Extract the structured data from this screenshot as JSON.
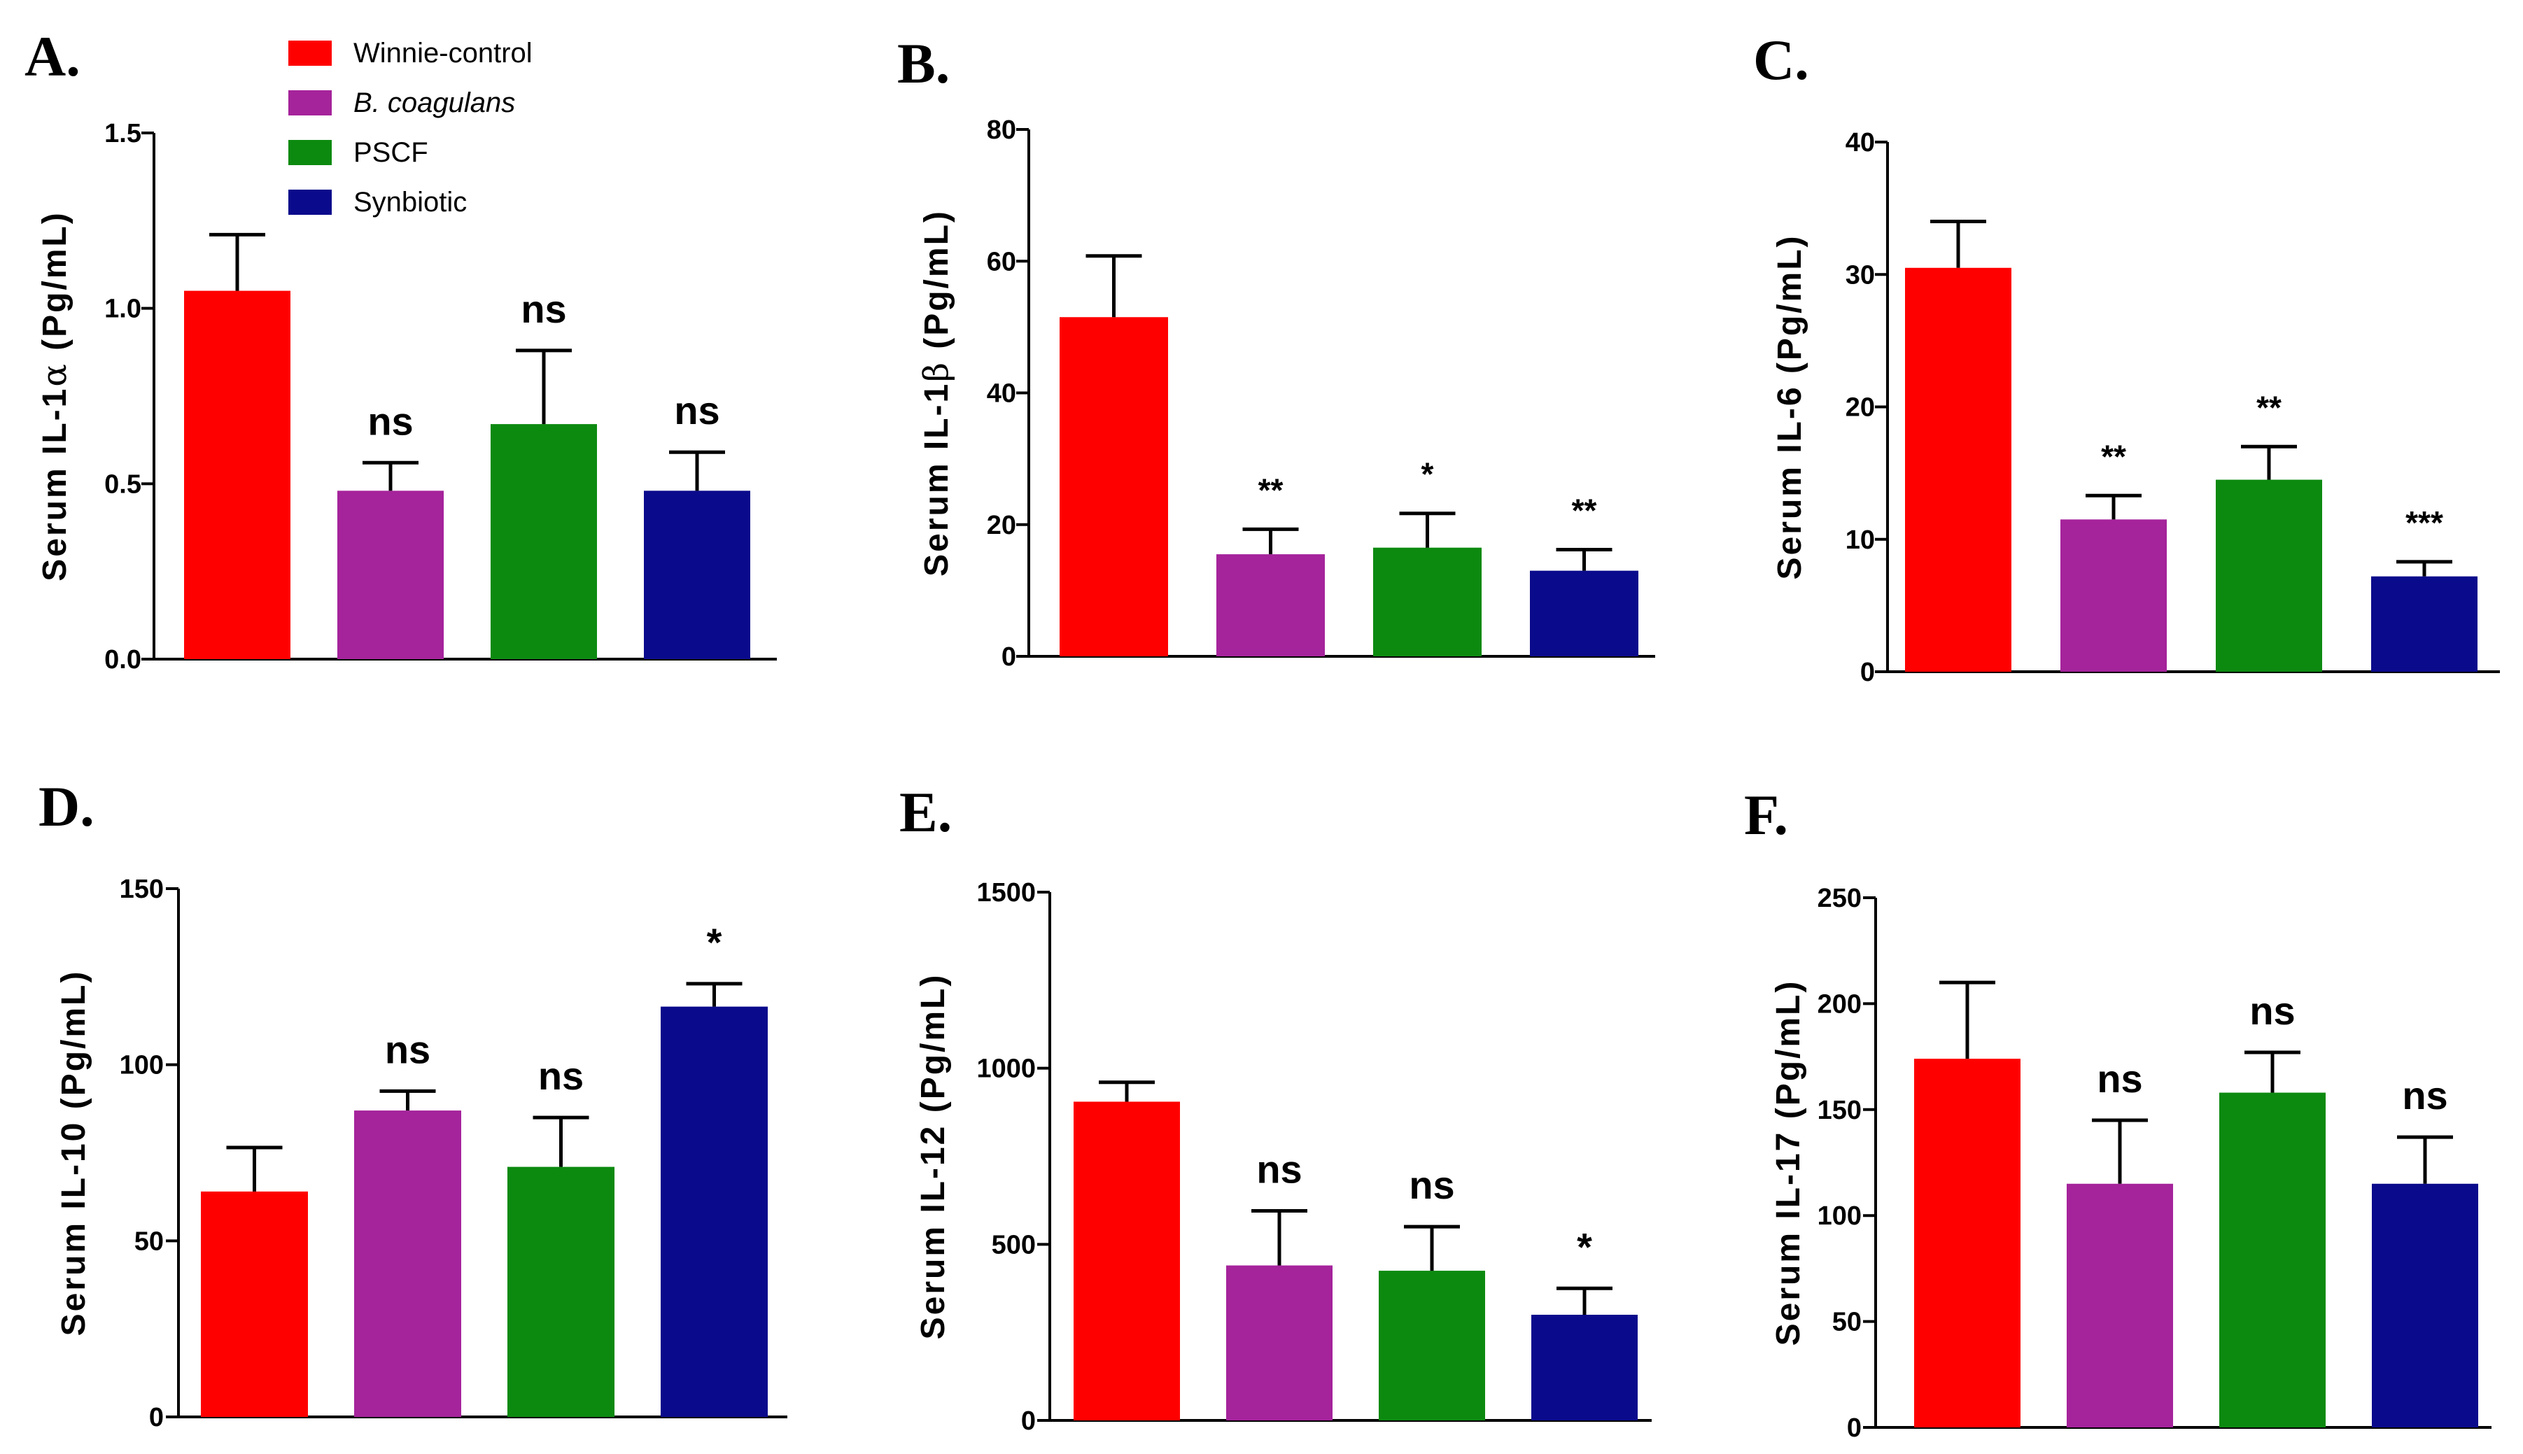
{
  "chart_data": [
    {
      "type": "bar",
      "panel": "A.",
      "ylabel_prefix": "Serum IL-1",
      "ylabel_greek": "α",
      "ylabel_suffix": " (Pg/mL)",
      "categories": [
        "Winnie-control",
        "B. coagulans",
        "PSCF",
        "Synbiotic"
      ],
      "values": [
        1.05,
        0.48,
        0.67,
        0.48
      ],
      "errors": [
        0.16,
        0.08,
        0.21,
        0.11
      ],
      "significance": [
        "",
        "ns",
        "ns",
        "ns"
      ],
      "ylim": [
        0,
        1.5
      ],
      "yticks": [
        0.0,
        0.5,
        1.0,
        1.5
      ],
      "yticklabels": [
        "0.0",
        "0.5",
        "1.0",
        "1.5"
      ]
    },
    {
      "type": "bar",
      "panel": "B.",
      "ylabel_prefix": "Serum IL-1",
      "ylabel_greek": "β",
      "ylabel_suffix": " (Pg/mL)",
      "categories": [
        "Winnie-control",
        "B. coagulans",
        "PSCF",
        "Synbiotic"
      ],
      "values": [
        51.5,
        15.5,
        16.5,
        13
      ],
      "errors": [
        9.3,
        3.8,
        5.2,
        3.2
      ],
      "significance": [
        "",
        "**",
        "*",
        "**"
      ],
      "ylim": [
        0,
        80
      ],
      "yticks": [
        0,
        20,
        40,
        60,
        80
      ],
      "yticklabels": [
        "0",
        "20",
        "40",
        "60",
        "80"
      ]
    },
    {
      "type": "bar",
      "panel": "C.",
      "ylabel_prefix": "Serum IL-6",
      "ylabel_greek": "",
      "ylabel_suffix": " (Pg/mL)",
      "categories": [
        "Winnie-control",
        "B. coagulans",
        "PSCF",
        "Synbiotic"
      ],
      "values": [
        30.5,
        11.5,
        14.5,
        7.2
      ],
      "errors": [
        3.5,
        1.8,
        2.5,
        1.1
      ],
      "significance": [
        "",
        "**",
        "**",
        "***"
      ],
      "ylim": [
        0,
        40
      ],
      "yticks": [
        0,
        10,
        20,
        30,
        40
      ],
      "yticklabels": [
        "0",
        "10",
        "20",
        "30",
        "40"
      ]
    },
    {
      "type": "bar",
      "panel": "D.",
      "ylabel_prefix": "Serum IL-10",
      "ylabel_greek": "",
      "ylabel_suffix": " (Pg/mL)",
      "categories": [
        "Winnie-control",
        "B. coagulans",
        "PSCF",
        "Synbiotic"
      ],
      "values": [
        64,
        87,
        71,
        116.5
      ],
      "errors": [
        12.5,
        5.5,
        14,
        6.5
      ],
      "significance": [
        "",
        "ns",
        "ns",
        "*"
      ],
      "ylim": [
        0,
        150
      ],
      "yticks": [
        0,
        50,
        100,
        150
      ],
      "yticklabels": [
        "0",
        "50",
        "100",
        "150"
      ]
    },
    {
      "type": "bar",
      "panel": "E.",
      "ylabel_prefix": "Serum IL-12",
      "ylabel_greek": "",
      "ylabel_suffix": " (Pg/mL)",
      "categories": [
        "Winnie-control",
        "B. coagulans",
        "PSCF",
        "Synbiotic"
      ],
      "values": [
        905,
        440,
        425,
        300
      ],
      "errors": [
        55,
        155,
        125,
        75
      ],
      "significance": [
        "",
        "ns",
        "ns",
        "*"
      ],
      "ylim": [
        0,
        1500
      ],
      "yticks": [
        0,
        500,
        1000,
        1500
      ],
      "yticklabels": [
        "0",
        "500",
        "1000",
        "1500"
      ]
    },
    {
      "type": "bar",
      "panel": "F.",
      "ylabel_prefix": "Serum IL-17",
      "ylabel_greek": "",
      "ylabel_suffix": " (Pg/mL)",
      "categories": [
        "Winnie-control",
        "B. coagulans",
        "PSCF",
        "Synbiotic"
      ],
      "values": [
        174,
        115,
        158,
        115
      ],
      "errors": [
        36,
        30,
        19,
        22
      ],
      "significance": [
        "",
        "ns",
        "ns",
        "ns"
      ],
      "ylim": [
        0,
        250
      ],
      "yticks": [
        0,
        50,
        100,
        150,
        200,
        250
      ],
      "yticklabels": [
        "0",
        "50",
        "100",
        "150",
        "200",
        "250"
      ]
    }
  ],
  "legend": {
    "items": [
      {
        "label": "Winnie-control",
        "italic": false
      },
      {
        "label": "B. coagulans",
        "italic": true
      },
      {
        "label": "PSCF",
        "italic": false
      },
      {
        "label": "Synbiotic",
        "italic": false
      }
    ]
  },
  "colors": [
    "#ff0000",
    "#a5239b",
    "#0c8a10",
    "#0a0a8c"
  ]
}
